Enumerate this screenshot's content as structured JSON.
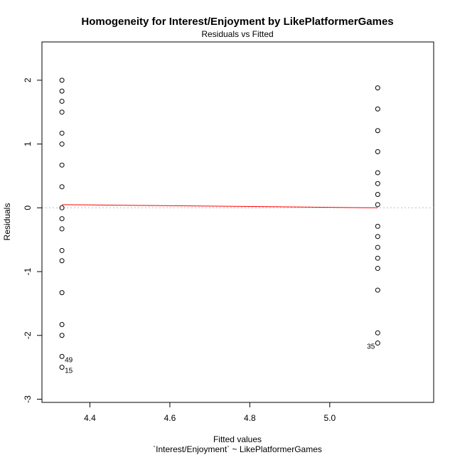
{
  "chart_data": {
    "type": "scatter",
    "title": "Homogeneity for Interest/Enjoyment by LikePlatformerGames",
    "subtitle": "Residuals vs Fitted",
    "xlabel": "Fitted values",
    "xlabel2": "`Interest/Enjoyment` ~ LikePlatformerGames",
    "ylabel": "Residuals",
    "xlim": [
      4.28,
      5.26
    ],
    "ylim": [
      -3.05,
      2.6
    ],
    "xticks": [
      4.4,
      4.6,
      4.8,
      5.0
    ],
    "xtick_labels": [
      "4.4",
      "4.6",
      "4.8",
      "5.0"
    ],
    "yticks": [
      -3,
      -2,
      -1,
      0,
      1,
      2
    ],
    "ytick_labels": [
      "-3",
      "-2",
      "-1",
      "0",
      "1",
      "2"
    ],
    "grid": false,
    "reference_line": {
      "y": 0,
      "style": "dotted",
      "color": "#bbbbbb"
    },
    "smooth_line": {
      "color": "#ff0000",
      "points": [
        [
          4.33,
          0.05
        ],
        [
          5.12,
          0.0
        ]
      ]
    },
    "series": [
      {
        "points": [
          {
            "x": 4.33,
            "y": 2.0
          },
          {
            "x": 4.33,
            "y": 1.83
          },
          {
            "x": 4.33,
            "y": 1.67
          },
          {
            "x": 4.33,
            "y": 1.5
          },
          {
            "x": 4.33,
            "y": 1.17
          },
          {
            "x": 4.33,
            "y": 1.0
          },
          {
            "x": 4.33,
            "y": 0.67
          },
          {
            "x": 4.33,
            "y": 0.33
          },
          {
            "x": 4.33,
            "y": 0.0
          },
          {
            "x": 4.33,
            "y": -0.17
          },
          {
            "x": 4.33,
            "y": -0.33
          },
          {
            "x": 4.33,
            "y": -0.67
          },
          {
            "x": 4.33,
            "y": -0.83
          },
          {
            "x": 4.33,
            "y": -1.33
          },
          {
            "x": 4.33,
            "y": -1.83
          },
          {
            "x": 4.33,
            "y": -2.0
          },
          {
            "x": 4.33,
            "y": -2.33,
            "label": "49"
          },
          {
            "x": 4.33,
            "y": -2.5,
            "label": "15"
          },
          {
            "x": 5.12,
            "y": 1.88
          },
          {
            "x": 5.12,
            "y": 1.55
          },
          {
            "x": 5.12,
            "y": 1.21
          },
          {
            "x": 5.12,
            "y": 0.88
          },
          {
            "x": 5.12,
            "y": 0.55
          },
          {
            "x": 5.12,
            "y": 0.38
          },
          {
            "x": 5.12,
            "y": 0.21
          },
          {
            "x": 5.12,
            "y": 0.05
          },
          {
            "x": 5.12,
            "y": -0.29
          },
          {
            "x": 5.12,
            "y": -0.45
          },
          {
            "x": 5.12,
            "y": -0.62
          },
          {
            "x": 5.12,
            "y": -0.79
          },
          {
            "x": 5.12,
            "y": -0.95
          },
          {
            "x": 5.12,
            "y": -1.29
          },
          {
            "x": 5.12,
            "y": -1.96
          },
          {
            "x": 5.12,
            "y": -2.12,
            "label": "35"
          }
        ]
      }
    ]
  }
}
